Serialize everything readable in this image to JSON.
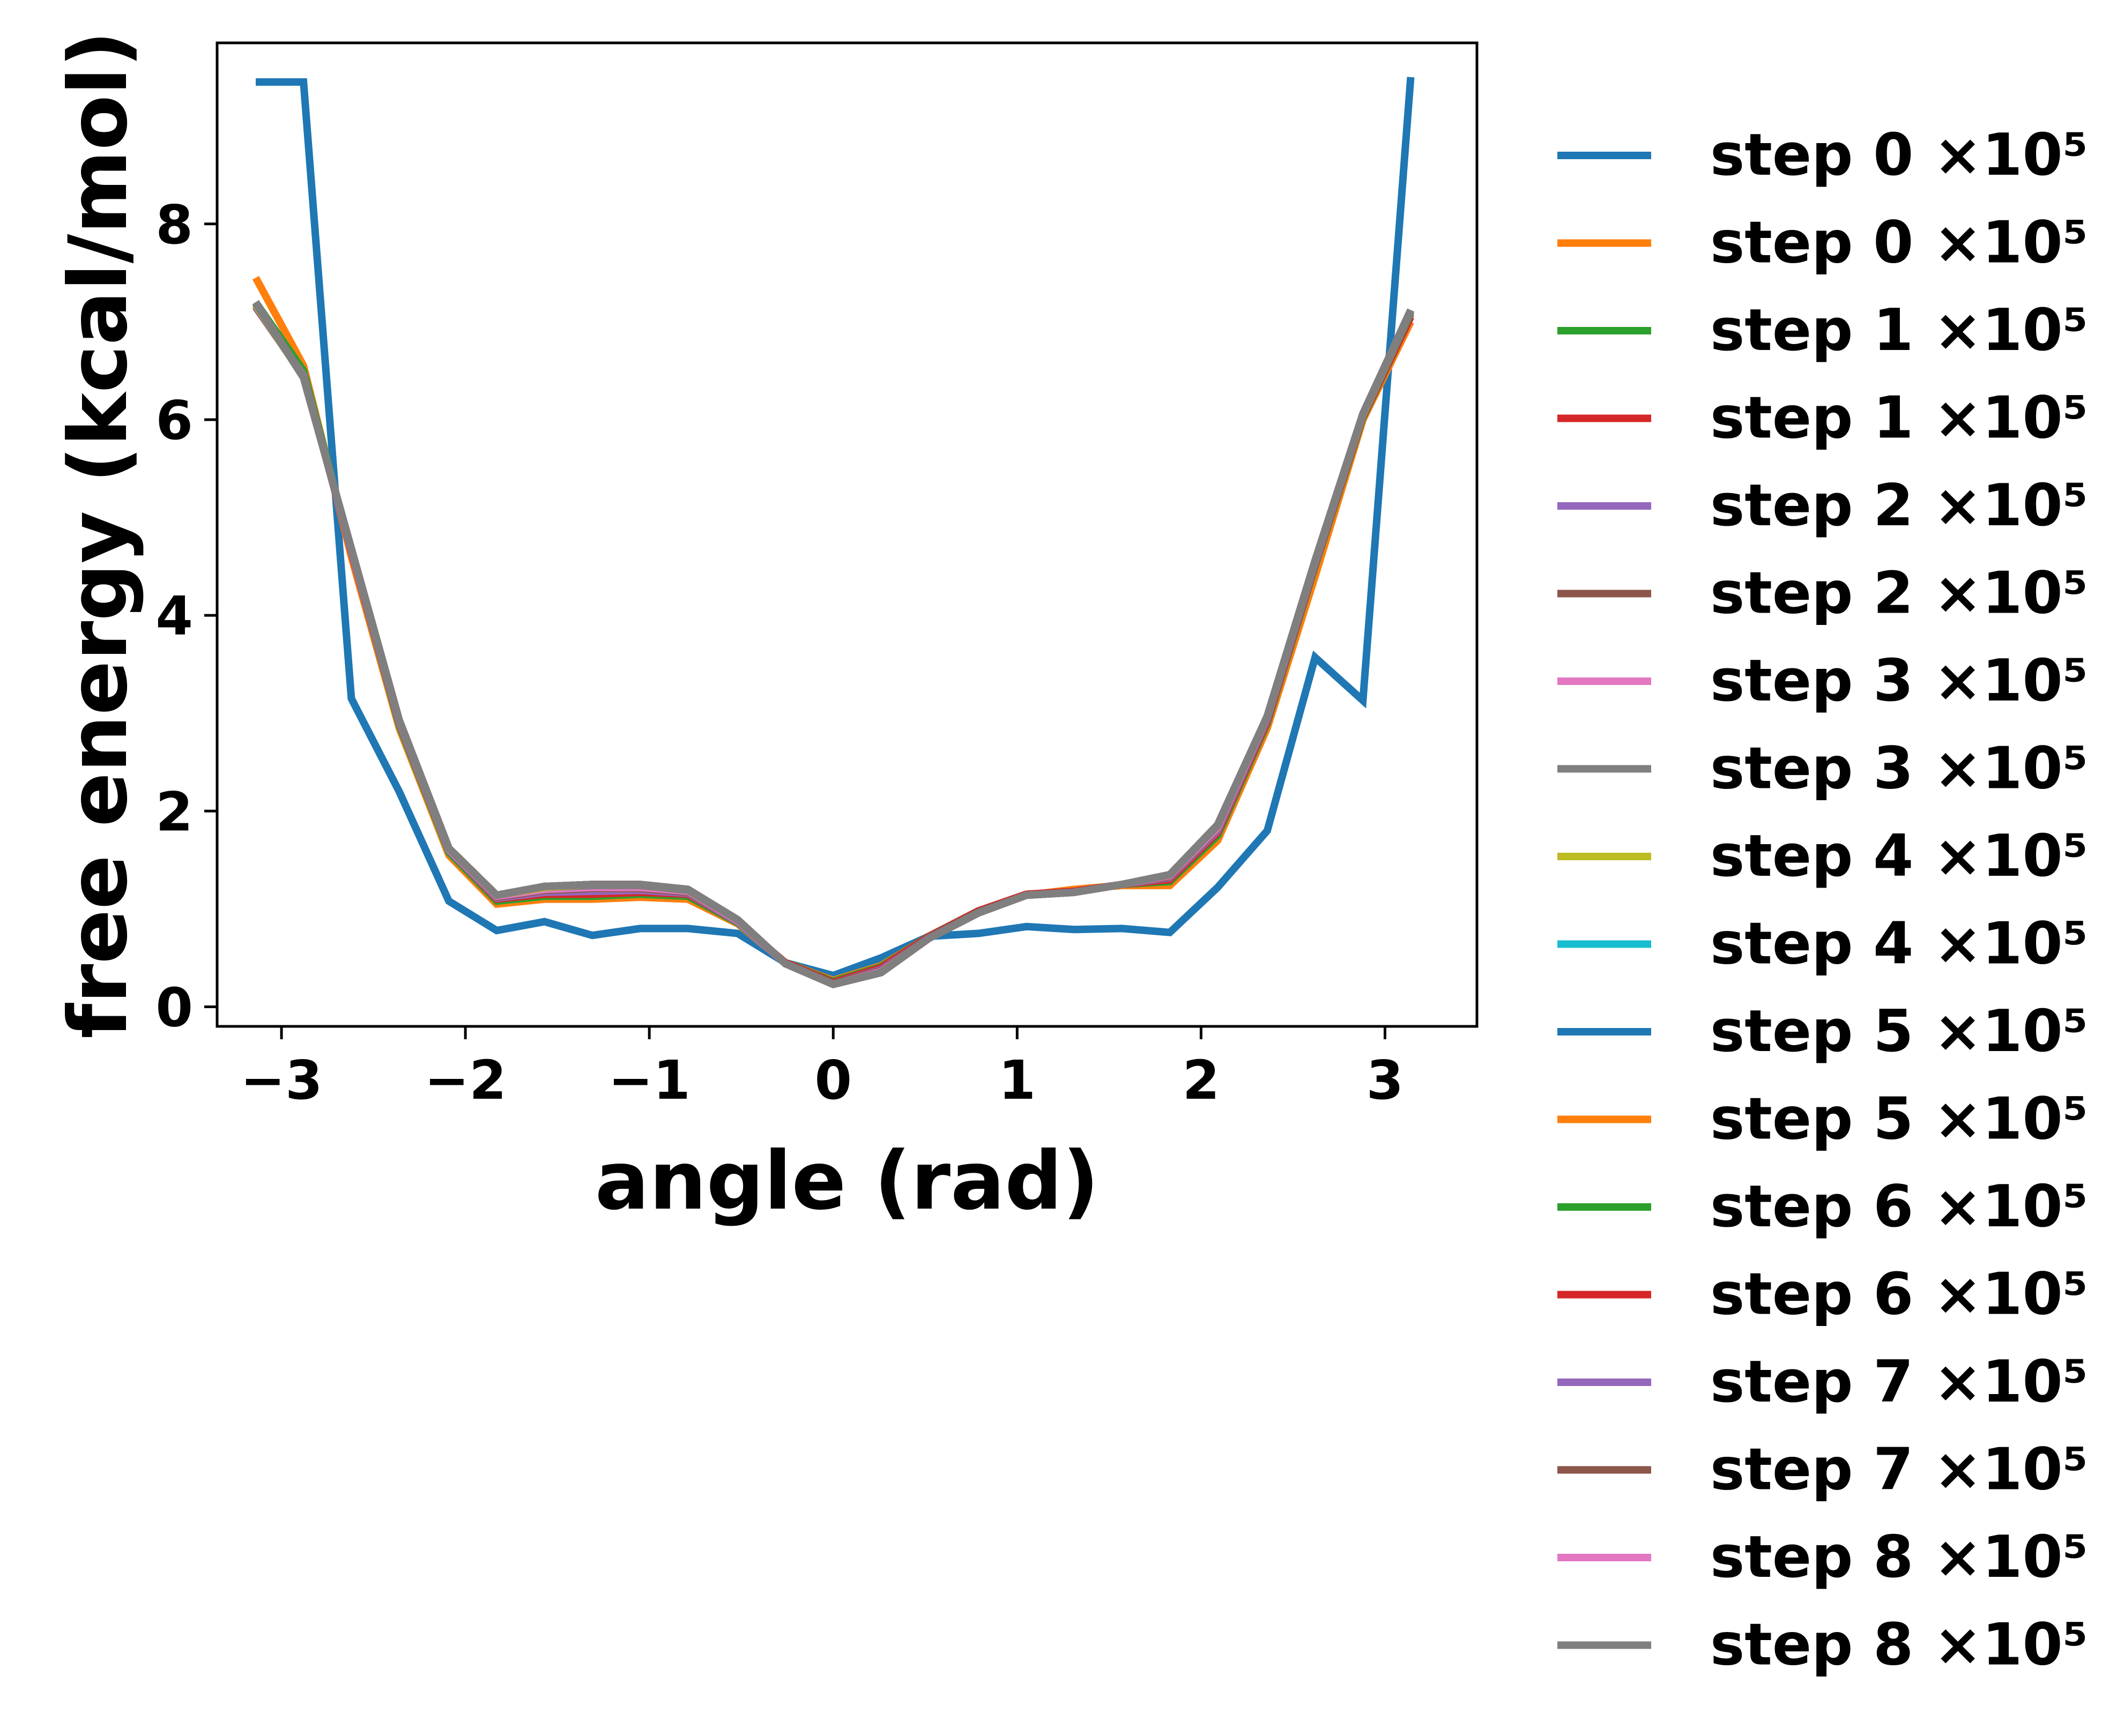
{
  "chart_data": {
    "type": "line",
    "title": "",
    "xlabel": "angle (rad)",
    "ylabel": "free energy (kcal/mol)",
    "xlim": [
      -3.35,
      3.5
    ],
    "ylim": [
      -0.2,
      9.85
    ],
    "xticks": [
      -3,
      -2,
      -1,
      0,
      1,
      2,
      3
    ],
    "xtick_labels": [
      "−3",
      "−2",
      "−1",
      "0",
      "1",
      "2",
      "3"
    ],
    "yticks": [
      0,
      2,
      4,
      6,
      8
    ],
    "ytick_labels": [
      "0",
      "2",
      "4",
      "6",
      "8"
    ],
    "grid": false,
    "legend_position": "outside-right",
    "x": [
      -3.14,
      -2.88,
      -2.62,
      -2.36,
      -2.09,
      -1.83,
      -1.57,
      -1.31,
      -1.05,
      -0.79,
      -0.52,
      -0.26,
      0.0,
      0.26,
      0.52,
      0.79,
      1.05,
      1.31,
      1.57,
      1.83,
      2.09,
      2.36,
      2.62,
      2.88,
      3.14
    ],
    "series": [
      {
        "name": "step 0 ×10⁵",
        "color": "#1f77b4",
        "values": [
          9.45,
          9.45,
          3.15,
          2.2,
          1.08,
          0.78,
          0.87,
          0.73,
          0.8,
          0.8,
          0.75,
          0.45,
          0.32,
          0.5,
          0.72,
          0.75,
          0.82,
          0.79,
          0.8,
          0.76,
          1.22,
          1.8,
          3.57,
          3.13,
          9.5
        ]
      },
      {
        "name": "step 0 ×10⁵",
        "color": "#ff7f0e",
        "values": [
          7.45,
          6.55,
          4.6,
          2.85,
          1.55,
          1.05,
          1.1,
          1.1,
          1.12,
          1.1,
          0.85,
          0.45,
          0.27,
          0.42,
          0.72,
          0.98,
          1.14,
          1.2,
          1.24,
          1.24,
          1.7,
          2.85,
          4.4,
          6.0,
          7.0
        ]
      },
      {
        "name": "step 1 ×10⁵",
        "color": "#2ca02c",
        "values": [
          7.2,
          6.5,
          4.65,
          2.88,
          1.58,
          1.08,
          1.13,
          1.13,
          1.15,
          1.13,
          0.86,
          0.45,
          0.26,
          0.41,
          0.72,
          0.98,
          1.15,
          1.18,
          1.25,
          1.28,
          1.75,
          2.9,
          4.5,
          6.02,
          7.05
        ]
      },
      {
        "name": "step 1 ×10⁵",
        "color": "#d62728",
        "values": [
          7.15,
          6.45,
          4.65,
          2.9,
          1.6,
          1.1,
          1.15,
          1.15,
          1.17,
          1.15,
          0.87,
          0.45,
          0.25,
          0.4,
          0.72,
          0.98,
          1.15,
          1.18,
          1.25,
          1.3,
          1.78,
          2.92,
          4.52,
          6.03,
          7.05
        ]
      },
      {
        "name": "step 2 ×10⁵",
        "color": "#9467bd",
        "values": [
          7.15,
          6.45,
          4.66,
          2.9,
          1.6,
          1.11,
          1.17,
          1.18,
          1.19,
          1.16,
          0.87,
          0.44,
          0.24,
          0.38,
          0.71,
          0.97,
          1.14,
          1.17,
          1.25,
          1.32,
          1.8,
          2.94,
          4.53,
          6.04,
          7.08
        ]
      },
      {
        "name": "step 2 ×10⁵",
        "color": "#8c564b",
        "values": [
          7.16,
          6.44,
          4.67,
          2.91,
          1.61,
          1.12,
          1.19,
          1.21,
          1.21,
          1.17,
          0.88,
          0.44,
          0.24,
          0.37,
          0.71,
          0.97,
          1.14,
          1.17,
          1.25,
          1.33,
          1.82,
          2.95,
          4.54,
          6.04,
          7.08
        ]
      },
      {
        "name": "step 3 ×10⁵",
        "color": "#e377c2",
        "values": [
          7.17,
          6.44,
          4.67,
          2.92,
          1.61,
          1.13,
          1.2,
          1.22,
          1.22,
          1.18,
          0.88,
          0.44,
          0.23,
          0.36,
          0.7,
          0.96,
          1.14,
          1.17,
          1.25,
          1.34,
          1.83,
          2.96,
          4.55,
          6.05,
          7.1
        ]
      },
      {
        "name": "step 3 ×10⁵",
        "color": "#7f7f7f",
        "values": [
          7.18,
          6.43,
          4.68,
          2.93,
          1.62,
          1.14,
          1.22,
          1.24,
          1.24,
          1.19,
          0.89,
          0.44,
          0.23,
          0.35,
          0.7,
          0.96,
          1.14,
          1.17,
          1.25,
          1.35,
          1.85,
          2.97,
          4.56,
          6.05,
          7.1
        ]
      },
      {
        "name": "step 4 ×10⁵",
        "color": "#bcbd22",
        "values": [
          7.18,
          6.43,
          4.68,
          2.93,
          1.62,
          1.14,
          1.22,
          1.25,
          1.25,
          1.2,
          0.89,
          0.44,
          0.23,
          0.35,
          0.7,
          0.96,
          1.14,
          1.17,
          1.25,
          1.35,
          1.86,
          2.97,
          4.56,
          6.05,
          7.11
        ]
      },
      {
        "name": "step 4 ×10⁵",
        "color": "#17becf",
        "values": [
          7.19,
          6.43,
          4.68,
          2.93,
          1.62,
          1.14,
          1.23,
          1.25,
          1.25,
          1.2,
          0.89,
          0.44,
          0.23,
          0.35,
          0.7,
          0.96,
          1.14,
          1.17,
          1.25,
          1.35,
          1.86,
          2.97,
          4.56,
          6.06,
          7.11
        ]
      },
      {
        "name": "step 5 ×10⁵",
        "color": "#1f77b4",
        "values": [
          7.19,
          6.43,
          4.68,
          2.93,
          1.62,
          1.14,
          1.23,
          1.25,
          1.25,
          1.2,
          0.89,
          0.44,
          0.23,
          0.35,
          0.7,
          0.96,
          1.14,
          1.17,
          1.25,
          1.35,
          1.86,
          2.97,
          4.56,
          6.06,
          7.11
        ]
      },
      {
        "name": "step 5 ×10⁵",
        "color": "#ff7f0e",
        "values": [
          7.19,
          6.43,
          4.68,
          2.93,
          1.62,
          1.14,
          1.23,
          1.25,
          1.25,
          1.2,
          0.89,
          0.44,
          0.23,
          0.35,
          0.7,
          0.96,
          1.14,
          1.17,
          1.25,
          1.35,
          1.86,
          2.97,
          4.56,
          6.06,
          7.11
        ]
      },
      {
        "name": "step 6 ×10⁵",
        "color": "#2ca02c",
        "values": [
          7.19,
          6.43,
          4.68,
          2.93,
          1.62,
          1.14,
          1.23,
          1.25,
          1.25,
          1.2,
          0.89,
          0.44,
          0.23,
          0.35,
          0.7,
          0.96,
          1.14,
          1.17,
          1.25,
          1.35,
          1.86,
          2.97,
          4.56,
          6.06,
          7.11
        ]
      },
      {
        "name": "step 6 ×10⁵",
        "color": "#d62728",
        "values": [
          7.2,
          6.43,
          4.68,
          2.93,
          1.62,
          1.14,
          1.23,
          1.25,
          1.25,
          1.2,
          0.89,
          0.44,
          0.23,
          0.35,
          0.7,
          0.96,
          1.14,
          1.17,
          1.25,
          1.35,
          1.86,
          2.97,
          4.56,
          6.06,
          7.12
        ]
      },
      {
        "name": "step 7 ×10⁵",
        "color": "#9467bd",
        "values": [
          7.2,
          6.43,
          4.68,
          2.93,
          1.62,
          1.14,
          1.23,
          1.25,
          1.25,
          1.2,
          0.89,
          0.44,
          0.23,
          0.35,
          0.7,
          0.96,
          1.14,
          1.17,
          1.25,
          1.35,
          1.86,
          2.97,
          4.56,
          6.06,
          7.12
        ]
      },
      {
        "name": "step 7 ×10⁵",
        "color": "#8c564b",
        "values": [
          7.2,
          6.43,
          4.68,
          2.93,
          1.62,
          1.14,
          1.23,
          1.25,
          1.25,
          1.2,
          0.89,
          0.44,
          0.23,
          0.35,
          0.7,
          0.96,
          1.14,
          1.17,
          1.25,
          1.35,
          1.86,
          2.97,
          4.56,
          6.06,
          7.12
        ]
      },
      {
        "name": "step 8 ×10⁵",
        "color": "#e377c2",
        "values": [
          7.2,
          6.43,
          4.68,
          2.93,
          1.62,
          1.14,
          1.23,
          1.25,
          1.25,
          1.2,
          0.89,
          0.44,
          0.23,
          0.35,
          0.7,
          0.96,
          1.14,
          1.17,
          1.25,
          1.35,
          1.86,
          2.97,
          4.56,
          6.06,
          7.12
        ]
      },
      {
        "name": "step 8 ×10⁵",
        "color": "#7f7f7f",
        "values": [
          7.2,
          6.43,
          4.68,
          2.93,
          1.62,
          1.14,
          1.23,
          1.25,
          1.25,
          1.2,
          0.89,
          0.44,
          0.23,
          0.35,
          0.7,
          0.96,
          1.14,
          1.17,
          1.25,
          1.35,
          1.86,
          2.97,
          4.56,
          6.06,
          7.12
        ]
      }
    ]
  }
}
